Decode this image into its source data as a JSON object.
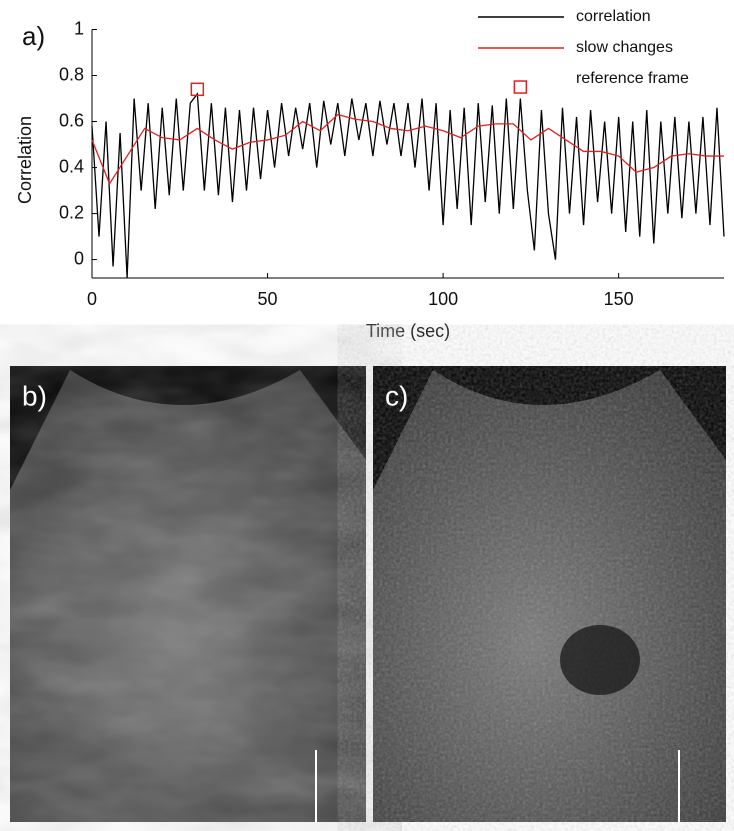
{
  "chart_data": {
    "type": "line",
    "panel_label": "a)",
    "xlabel": "Time (sec)",
    "ylabel": "Correlation",
    "xlim": [
      0,
      180
    ],
    "xticks": [
      0,
      50,
      100,
      150
    ],
    "ylim": [
      -0.08,
      1
    ],
    "yticks": [
      0,
      0.2,
      0.4,
      0.6,
      0.8,
      1
    ],
    "legend": "top-right",
    "series": [
      {
        "name": "correlation",
        "color": "#000000",
        "style": "line",
        "x": [
          0,
          2,
          4,
          6,
          8,
          10,
          12,
          14,
          16,
          18,
          20,
          22,
          24,
          26,
          28,
          30,
          32,
          34,
          36,
          38,
          40,
          42,
          44,
          46,
          48,
          50,
          52,
          54,
          56,
          58,
          60,
          62,
          64,
          66,
          68,
          70,
          72,
          74,
          76,
          78,
          80,
          82,
          84,
          86,
          88,
          90,
          92,
          94,
          96,
          98,
          100,
          102,
          104,
          106,
          108,
          110,
          112,
          114,
          116,
          118,
          120,
          122,
          124,
          126,
          128,
          130,
          132,
          134,
          136,
          138,
          140,
          142,
          144,
          146,
          148,
          150,
          152,
          154,
          156,
          158,
          160,
          162,
          164,
          166,
          168,
          170,
          172,
          174,
          176,
          178,
          180
        ],
        "values": [
          0.58,
          0.1,
          0.6,
          -0.03,
          0.55,
          -0.08,
          0.7,
          0.3,
          0.68,
          0.22,
          0.66,
          0.28,
          0.7,
          0.3,
          0.68,
          0.72,
          0.3,
          0.68,
          0.28,
          0.66,
          0.25,
          0.65,
          0.3,
          0.66,
          0.35,
          0.65,
          0.4,
          0.68,
          0.45,
          0.66,
          0.48,
          0.68,
          0.4,
          0.69,
          0.5,
          0.68,
          0.45,
          0.7,
          0.52,
          0.68,
          0.45,
          0.69,
          0.5,
          0.68,
          0.45,
          0.68,
          0.4,
          0.7,
          0.3,
          0.68,
          0.15,
          0.65,
          0.22,
          0.66,
          0.15,
          0.68,
          0.25,
          0.67,
          0.2,
          0.7,
          0.22,
          0.7,
          0.3,
          0.04,
          0.65,
          0.2,
          0.0,
          0.66,
          0.2,
          0.62,
          0.15,
          0.65,
          0.25,
          0.6,
          0.2,
          0.62,
          0.12,
          0.6,
          0.1,
          0.65,
          0.07,
          0.6,
          0.2,
          0.62,
          0.18,
          0.6,
          0.2,
          0.62,
          0.15,
          0.66,
          0.1
        ]
      },
      {
        "name": "slow changes",
        "color": "#dd2222",
        "style": "line",
        "x": [
          0,
          5,
          10,
          15,
          20,
          25,
          30,
          35,
          40,
          45,
          50,
          55,
          60,
          65,
          70,
          75,
          80,
          85,
          90,
          95,
          100,
          105,
          110,
          115,
          120,
          125,
          130,
          135,
          140,
          145,
          150,
          155,
          160,
          165,
          170,
          175,
          180
        ],
        "values": [
          0.52,
          0.33,
          0.45,
          0.57,
          0.53,
          0.52,
          0.57,
          0.52,
          0.48,
          0.51,
          0.52,
          0.54,
          0.6,
          0.56,
          0.63,
          0.61,
          0.6,
          0.57,
          0.56,
          0.58,
          0.56,
          0.53,
          0.58,
          0.59,
          0.59,
          0.52,
          0.57,
          0.52,
          0.47,
          0.47,
          0.45,
          0.38,
          0.4,
          0.45,
          0.46,
          0.45,
          0.45
        ]
      },
      {
        "name": "reference frame",
        "color": "#dd2222",
        "style": "square",
        "x": [
          30,
          122
        ],
        "values": [
          0.74,
          0.75
        ]
      }
    ]
  },
  "images": [
    {
      "label": "b)"
    },
    {
      "label": "c)"
    }
  ]
}
